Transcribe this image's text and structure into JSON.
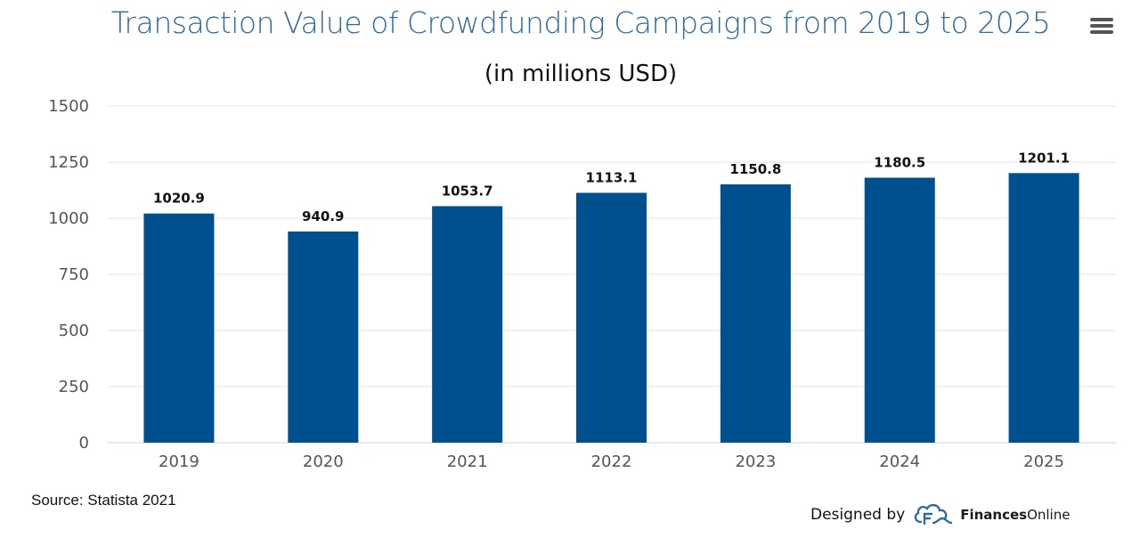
{
  "chart_data": {
    "type": "bar",
    "title": "Transaction Value of Crowdfunding Campaigns from 2019 to 2025",
    "subtitle": "(in millions USD)",
    "categories": [
      "2019",
      "2020",
      "2021",
      "2022",
      "2023",
      "2024",
      "2025"
    ],
    "values": [
      1020.9,
      940.9,
      1053.7,
      1113.1,
      1150.8,
      1180.5,
      1201.1
    ],
    "value_labels": [
      "1020.9",
      "940.9",
      "1053.7",
      "1113.1",
      "1150.8",
      "1180.5",
      "1201.1"
    ],
    "ylim": [
      0,
      1500
    ],
    "yticks": [
      "0",
      "250",
      "500",
      "750",
      "1000",
      "1250",
      "1500"
    ],
    "grid": true,
    "legend": "none",
    "bar_color": "#00508f"
  },
  "footer": {
    "source": "Source: Statista 2021",
    "designed_by": "Designed by",
    "brand_part1": "Finances",
    "brand_part2": "Online"
  },
  "menu_icon": "hamburger-menu-icon"
}
